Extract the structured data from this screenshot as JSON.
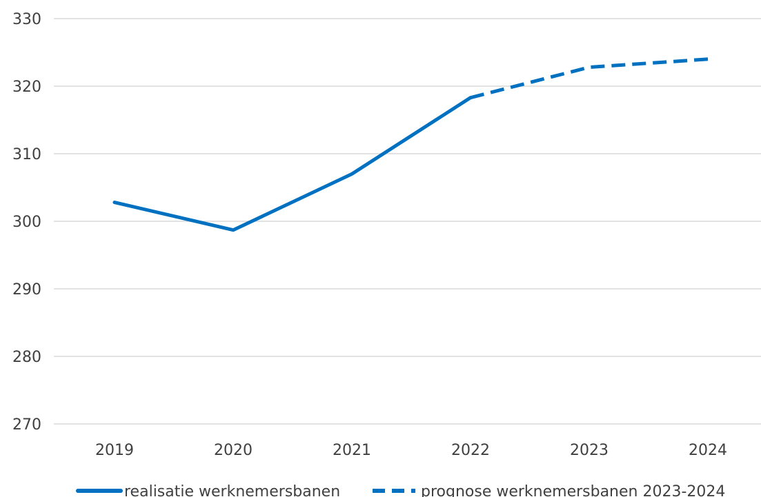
{
  "chart_data": {
    "type": "line",
    "title": "",
    "xlabel": "",
    "ylabel": "",
    "categories": [
      "2019",
      "2020",
      "2021",
      "2022",
      "2023",
      "2024"
    ],
    "ylim": [
      270,
      330
    ],
    "yticks": [
      270,
      280,
      290,
      300,
      310,
      320,
      330
    ],
    "grid": true,
    "legend_position": "bottom",
    "series": [
      {
        "name": "realisatie werknemersbanen",
        "style": "solid",
        "color": "#0070C0",
        "values": [
          302.8,
          298.7,
          307.0,
          318.3,
          null,
          null
        ]
      },
      {
        "name": "prognose werknemersbanen 2023-2024",
        "style": "dashed",
        "color": "#0070C0",
        "values": [
          null,
          null,
          null,
          318.3,
          322.8,
          324.0
        ]
      }
    ]
  }
}
